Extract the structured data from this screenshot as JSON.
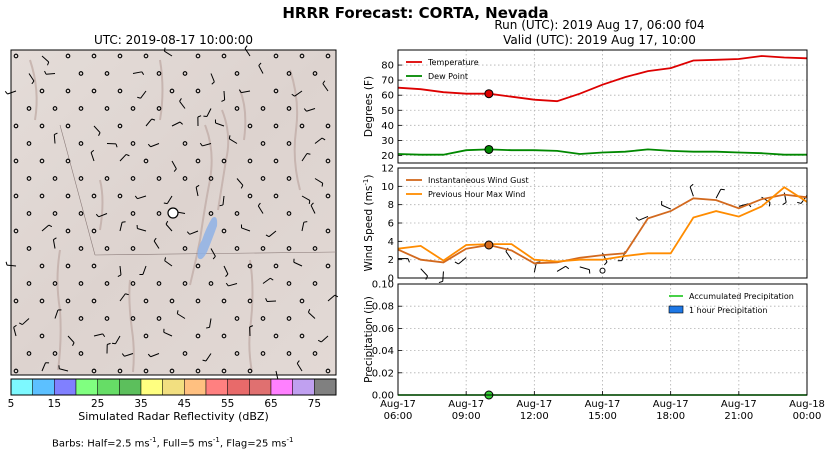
{
  "header": {
    "title": "HRRR Forecast: CORTA, Nevada",
    "run": "Run (UTC): 2019 Aug 17, 06:00 f04",
    "valid": "Valid (UTC): 2019 Aug 17, 10:00"
  },
  "map": {
    "title": "UTC: 2019-08-17 10:00:00",
    "colorbar": {
      "label": "Simulated Radar Reflectivity (dBZ)",
      "tick_labels": [
        "5",
        "15",
        "25",
        "35",
        "45",
        "55",
        "65",
        "75"
      ],
      "colors": [
        "#7df9ff",
        "#5cc0ff",
        "#8080ff",
        "#80ff80",
        "#66dd66",
        "#5cbf5c",
        "#ffff80",
        "#f2df80",
        "#ffc080",
        "#ff8080",
        "#e86a6a",
        "#e07070",
        "#ff80ff",
        "#c0a0f0",
        "#808080"
      ]
    }
  },
  "barbs_note": {
    "prefix": "Barbs: Half=2.5 ms",
    "half_sup": "-1",
    "full": ", Full=5 ms",
    "full_sup": "-1",
    "flag": ", Flag=25 ms",
    "flag_sup": "-1"
  },
  "chart_data": [
    {
      "type": "line",
      "ylabel": "Degrees (F)",
      "ylim": [
        15,
        90
      ],
      "yticks": [
        20,
        30,
        40,
        50,
        60,
        70,
        80
      ],
      "grid": true,
      "legend_position": "upper-left",
      "x": [
        "06:00",
        "07:00",
        "08:00",
        "09:00",
        "10:00",
        "11:00",
        "12:00",
        "13:00",
        "14:00",
        "15:00",
        "16:00",
        "17:00",
        "18:00",
        "19:00",
        "20:00",
        "21:00",
        "22:00",
        "23:00",
        "00:00"
      ],
      "series": [
        {
          "name": "Temperature",
          "color": "#dd0000",
          "values": [
            65,
            64,
            62,
            61,
            61,
            59,
            57,
            56,
            61,
            67,
            72,
            76,
            78,
            83,
            83.5,
            84,
            86,
            85,
            84.5
          ]
        },
        {
          "name": "Dew Point",
          "color": "#008800",
          "values": [
            21,
            20.5,
            20.5,
            23.5,
            24,
            23.5,
            23.5,
            23,
            21,
            22,
            22.5,
            24,
            23,
            22.5,
            22.5,
            22,
            21.5,
            20.5,
            20.5
          ]
        }
      ],
      "marker_at": "10:00"
    },
    {
      "type": "line",
      "ylabel": "Wind Speed (ms-1)",
      "ylim": [
        0,
        12
      ],
      "yticks": [
        0,
        2,
        4,
        6,
        8,
        10,
        12
      ],
      "grid": true,
      "legend_position": "upper-left",
      "x": [
        "06:00",
        "07:00",
        "08:00",
        "09:00",
        "10:00",
        "11:00",
        "12:00",
        "13:00",
        "14:00",
        "15:00",
        "16:00",
        "17:00",
        "18:00",
        "19:00",
        "20:00",
        "21:00",
        "22:00",
        "23:00",
        "00:00"
      ],
      "series": [
        {
          "name": "Instantaneous Wind Gust",
          "color": "#d2691e",
          "values": [
            3.1,
            2.0,
            1.7,
            3.2,
            3.6,
            3.0,
            1.6,
            1.7,
            2.2,
            2.5,
            2.7,
            6.5,
            7.3,
            8.7,
            8.5,
            7.6,
            8.6,
            9.1,
            8.8
          ]
        },
        {
          "name": "Previous Hour Max Wind",
          "color": "#ff8c00",
          "values": [
            3.2,
            3.5,
            1.9,
            3.6,
            3.7,
            3.7,
            2.0,
            1.8,
            2.0,
            2.0,
            2.4,
            2.7,
            2.7,
            6.6,
            7.3,
            6.7,
            7.8,
            9.9,
            8.3
          ]
        }
      ],
      "marker_at": "10:00"
    },
    {
      "type": "line",
      "ylabel": "Precipitation (in)",
      "ylim": [
        0,
        0.1
      ],
      "yticks": [
        0.0,
        0.02,
        0.04,
        0.06,
        0.08,
        0.1
      ],
      "ytick_labels": [
        "0.00",
        "0.02",
        "0.04",
        "0.06",
        "0.08",
        "0.10"
      ],
      "grid": true,
      "legend_position": "upper-right",
      "x_tick_labels": [
        [
          "Aug-17",
          "06:00"
        ],
        [
          "Aug-17",
          "09:00"
        ],
        [
          "Aug-17",
          "12:00"
        ],
        [
          "Aug-17",
          "15:00"
        ],
        [
          "Aug-17",
          "18:00"
        ],
        [
          "Aug-17",
          "21:00"
        ],
        [
          "Aug-18",
          "00:00"
        ]
      ],
      "series": [
        {
          "name": "Accumulated Precipitation",
          "color": "#33cc33",
          "values": [
            0,
            0,
            0,
            0,
            0,
            0,
            0,
            0,
            0,
            0,
            0,
            0,
            0,
            0,
            0,
            0,
            0,
            0,
            0
          ]
        },
        {
          "name": "1 hour Precipitation",
          "color": "#1e78e6",
          "values": [
            0,
            0,
            0,
            0,
            0,
            0,
            0,
            0,
            0,
            0,
            0,
            0,
            0,
            0,
            0,
            0,
            0,
            0,
            0
          ]
        }
      ],
      "marker_at": "10:00"
    }
  ]
}
